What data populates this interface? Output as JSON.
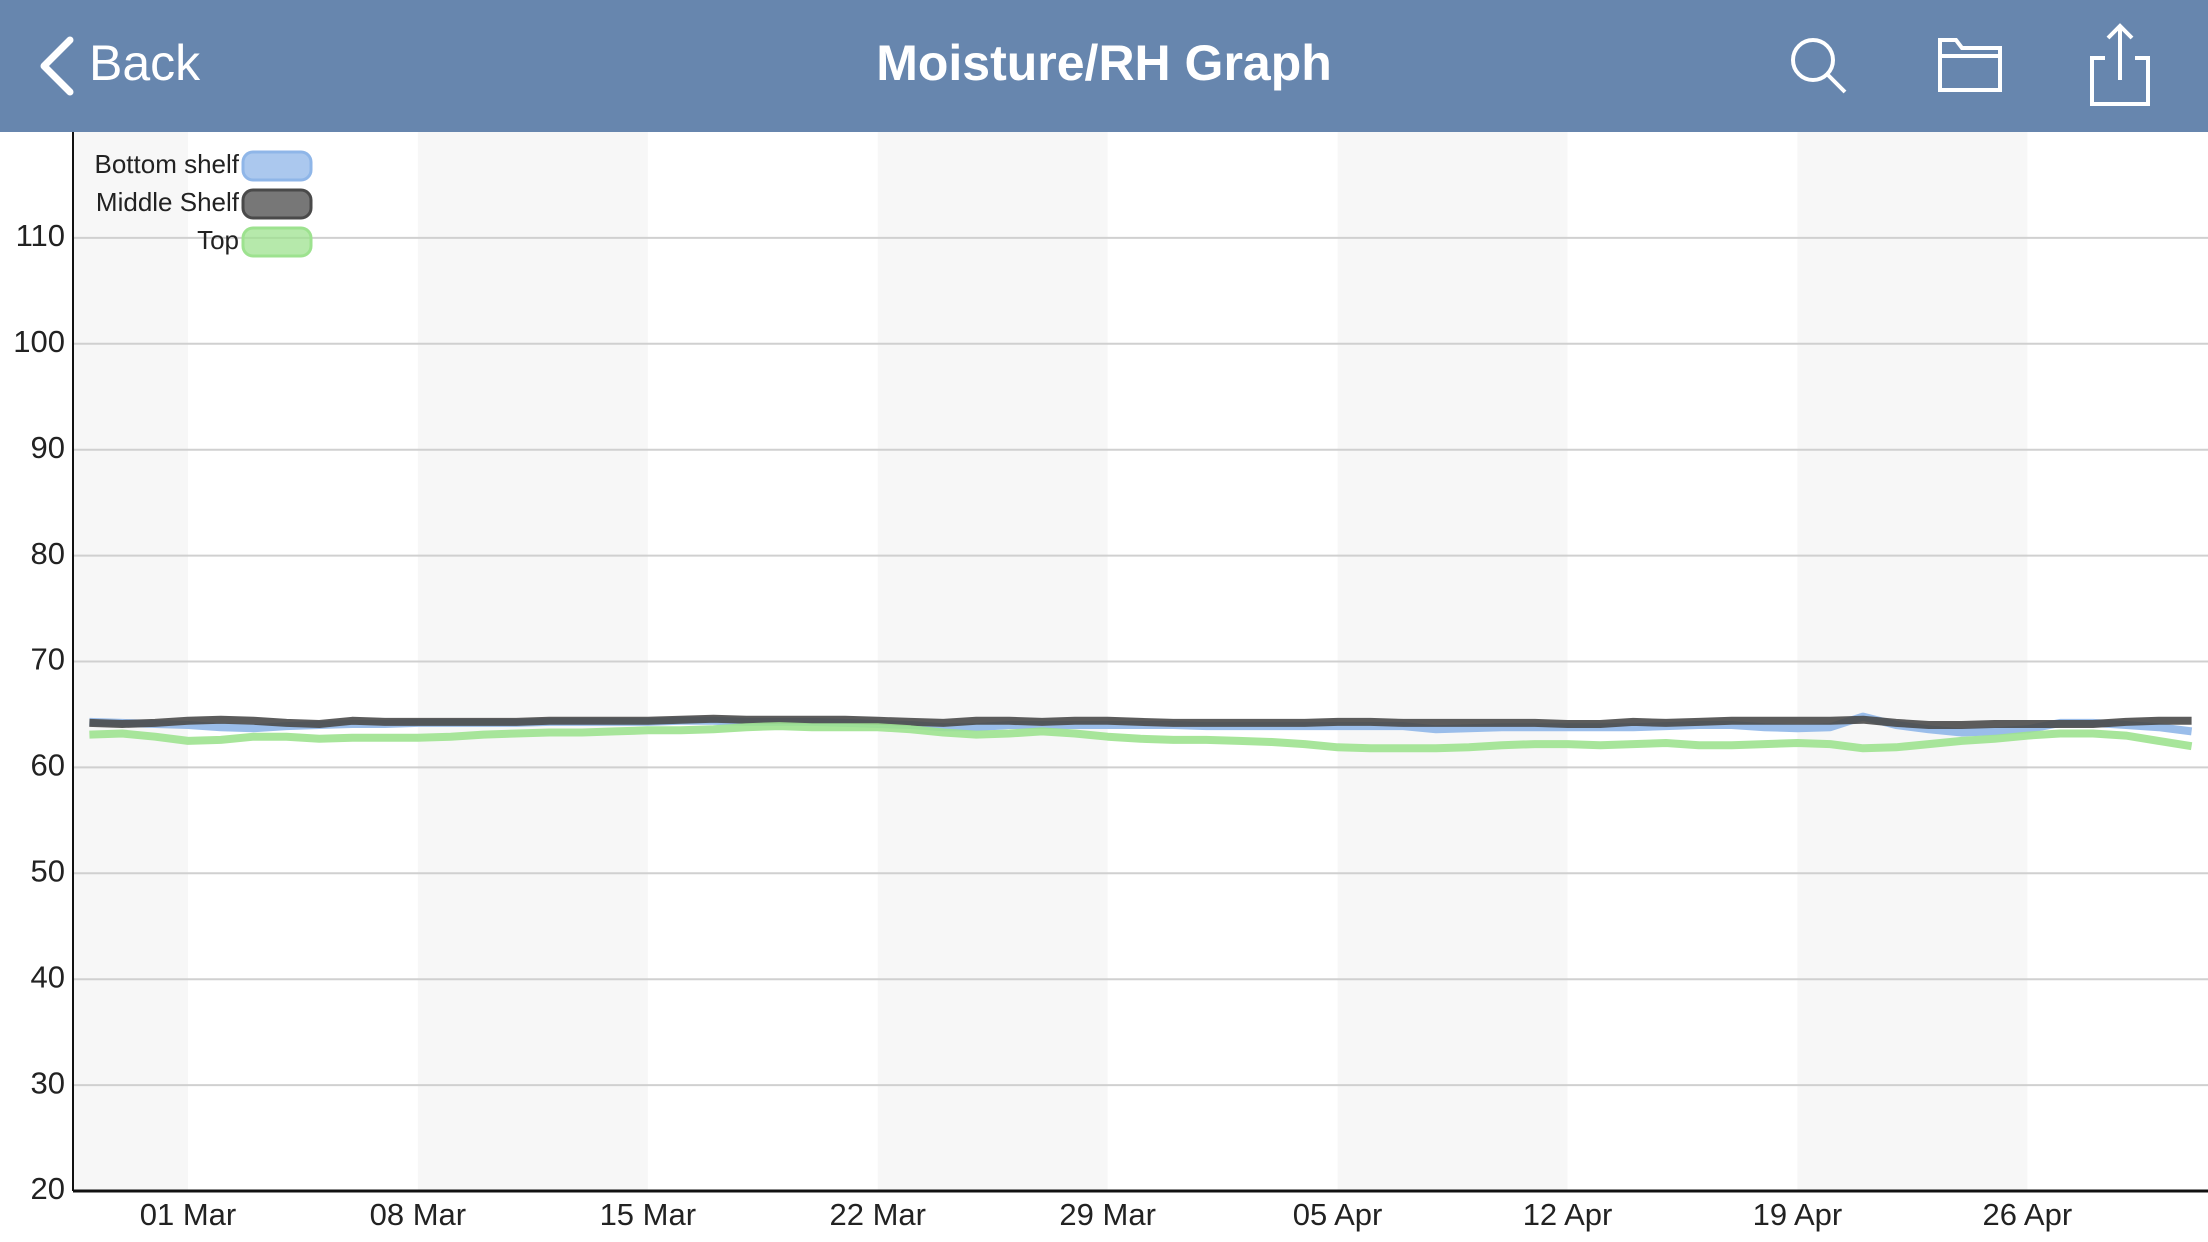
{
  "header": {
    "back": "Back",
    "title": "Moisture/RH Graph"
  },
  "chart_data": {
    "type": "line",
    "categories": [
      null,
      null,
      null,
      "01 Mar",
      null,
      null,
      null,
      null,
      null,
      null,
      "08 Mar",
      null,
      null,
      null,
      null,
      null,
      null,
      "15 Mar",
      null,
      null,
      null,
      null,
      null,
      null,
      "22 Mar",
      null,
      null,
      null,
      null,
      null,
      null,
      "29 Mar",
      null,
      null,
      null,
      null,
      null,
      null,
      "05 Apr",
      null,
      null,
      null,
      null,
      null,
      null,
      "12 Apr",
      null,
      null,
      null,
      null,
      null,
      null,
      "19 Apr",
      null,
      null,
      null,
      null,
      null,
      null,
      "26 Apr",
      null,
      null,
      null,
      null,
      null
    ],
    "series": [
      {
        "name": "Bottom shelf",
        "color": "#8fb6e8",
        "values": [
          64.3,
          64.2,
          64.1,
          64.0,
          63.8,
          63.7,
          63.9,
          64.0,
          64.1,
          64.1,
          64.2,
          64.2,
          64.2,
          64.2,
          64.3,
          64.3,
          64.3,
          64.3,
          64.4,
          64.4,
          64.3,
          64.3,
          64.3,
          64.2,
          64.1,
          64.0,
          63.8,
          63.8,
          64.0,
          64.0,
          64.0,
          64.0,
          64.0,
          64.0,
          63.9,
          63.9,
          63.9,
          63.9,
          63.9,
          63.9,
          63.9,
          63.6,
          63.7,
          63.8,
          63.8,
          63.8,
          63.8,
          63.8,
          63.9,
          64.0,
          64.0,
          63.8,
          63.7,
          63.8,
          64.8,
          64.0,
          63.6,
          63.3,
          63.4,
          63.6,
          64.2,
          64.2,
          64.0,
          63.8,
          63.4
        ]
      },
      {
        "name": "Middle Shelf",
        "color": "#4a4a4a",
        "values": [
          64.2,
          64.1,
          64.2,
          64.4,
          64.5,
          64.4,
          64.2,
          64.1,
          64.4,
          64.3,
          64.3,
          64.3,
          64.3,
          64.3,
          64.4,
          64.4,
          64.4,
          64.4,
          64.5,
          64.6,
          64.5,
          64.5,
          64.5,
          64.5,
          64.4,
          64.3,
          64.2,
          64.4,
          64.4,
          64.3,
          64.4,
          64.4,
          64.3,
          64.2,
          64.2,
          64.2,
          64.2,
          64.2,
          64.3,
          64.3,
          64.2,
          64.2,
          64.2,
          64.2,
          64.2,
          64.1,
          64.1,
          64.3,
          64.2,
          64.3,
          64.4,
          64.4,
          64.4,
          64.4,
          64.5,
          64.2,
          64.0,
          64.0,
          64.1,
          64.1,
          64.1,
          64.1,
          64.3,
          64.4,
          64.4
        ]
      },
      {
        "name": "Top",
        "color": "#9de28f",
        "values": [
          63.1,
          63.2,
          62.9,
          62.5,
          62.6,
          62.9,
          62.9,
          62.7,
          62.8,
          62.8,
          62.8,
          62.9,
          63.1,
          63.2,
          63.3,
          63.3,
          63.4,
          63.5,
          63.5,
          63.6,
          63.8,
          63.9,
          63.8,
          63.8,
          63.8,
          63.6,
          63.3,
          63.1,
          63.2,
          63.4,
          63.2,
          62.9,
          62.7,
          62.6,
          62.6,
          62.5,
          62.4,
          62.2,
          61.9,
          61.8,
          61.8,
          61.8,
          61.9,
          62.1,
          62.2,
          62.2,
          62.1,
          62.2,
          62.3,
          62.1,
          62.1,
          62.2,
          62.3,
          62.2,
          61.8,
          61.9,
          62.2,
          62.5,
          62.7,
          63.0,
          63.2,
          63.2,
          63.0,
          62.5,
          62.0
        ]
      }
    ],
    "ylim": [
      20,
      120
    ],
    "yticks": [
      20,
      30,
      40,
      50,
      60,
      70,
      80,
      90,
      100,
      110
    ],
    "grid": true
  }
}
